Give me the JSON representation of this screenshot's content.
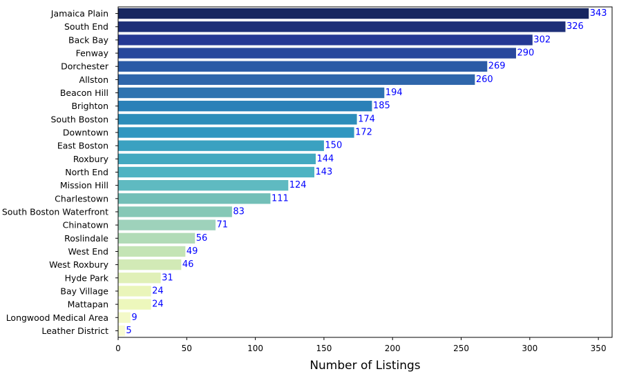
{
  "chart_data": {
    "type": "bar",
    "orientation": "horizontal",
    "categories": [
      "Jamaica Plain",
      "South End",
      "Back Bay",
      "Fenway",
      "Dorchester",
      "Allston",
      "Beacon Hill",
      "Brighton",
      "South Boston",
      "Downtown",
      "East Boston",
      "Roxbury",
      "North End",
      "Mission Hill",
      "Charlestown",
      "South Boston Waterfront",
      "Chinatown",
      "Roslindale",
      "West End",
      "West Roxbury",
      "Hyde Park",
      "Bay Village",
      "Mattapan",
      "Longwood Medical Area",
      "Leather District"
    ],
    "values": [
      343,
      326,
      302,
      290,
      269,
      260,
      194,
      185,
      174,
      172,
      150,
      144,
      143,
      124,
      111,
      83,
      71,
      56,
      49,
      46,
      31,
      24,
      24,
      9,
      5
    ],
    "xlabel": "Number of Listings",
    "ylabel": "",
    "xlim": [
      0,
      360
    ],
    "xticks": [
      0,
      50,
      100,
      150,
      200,
      250,
      300,
      350
    ],
    "grid": false,
    "legend": "none",
    "colors": [
      "#172660",
      "#1e2f78",
      "#253894",
      "#29489c",
      "#2b5ba6",
      "#2f66ab",
      "#2f73b0",
      "#2b81b8",
      "#2c8dba",
      "#3097c0",
      "#3aa1c1",
      "#43a9c0",
      "#4eb3c2",
      "#5fbac1",
      "#73bfb8",
      "#85c8b6",
      "#9ed2bb",
      "#b1dbb7",
      "#c4e4b5",
      "#d2eab6",
      "#e0f0b8",
      "#eaf5ba",
      "#edf7bc",
      "#f3f9c9",
      "#f8fbd2"
    ],
    "label_color": "#0000ff"
  }
}
